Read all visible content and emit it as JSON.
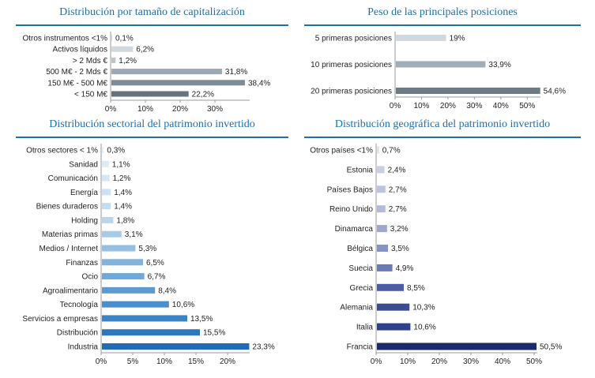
{
  "chart_data": [
    {
      "type": "bar",
      "title": "Distribución por tamaño de capitalización",
      "orientation": "horizontal",
      "categories": [
        "Otros instrumentos <1%",
        "Activos líquidos",
        "> 2 Mds €",
        "500 M€ - 2 Mds €",
        "150 M€ - 500 M€",
        "< 150 M€"
      ],
      "values": [
        0.1,
        6.2,
        1.2,
        31.8,
        38.4,
        22.2
      ],
      "value_labels": [
        "0,1%",
        "6,2%",
        "1,2%",
        "31,8%",
        "38,4%",
        "22,2%"
      ],
      "colors": [
        "#d0d8de",
        "#d0d8de",
        "#b9c5cd",
        "#9aa9b3",
        "#7d8d98",
        "#66737c"
      ],
      "xlim": [
        0,
        40
      ],
      "ticks": [
        0,
        10,
        20,
        30
      ],
      "tick_labels": [
        "0%",
        "10%",
        "20%",
        "30%"
      ]
    },
    {
      "type": "bar",
      "title": "Peso de las principales posiciones",
      "orientation": "horizontal",
      "categories": [
        "5 primeras posiciones",
        "10 primeras posiciones",
        "20 primeras posiciones"
      ],
      "values": [
        19,
        33.9,
        54.6
      ],
      "value_labels": [
        "19%",
        "33,9%",
        "54,6%"
      ],
      "colors": [
        "#cfd8de",
        "#9eadb7",
        "#6c7a84"
      ],
      "xlim": [
        0,
        55
      ],
      "ticks": [
        0,
        10,
        20,
        30,
        40,
        50
      ],
      "tick_labels": [
        "0%",
        "10%",
        "20%",
        "30%",
        "40%",
        "50%"
      ]
    },
    {
      "type": "bar",
      "title": "Distribución sectorial del patrimonio invertido",
      "orientation": "horizontal",
      "categories": [
        "Otros sectores < 1%",
        "Sanidad",
        "Comunicación",
        "Energía",
        "Bienes duraderos",
        "Holding",
        "Materias primas",
        "Medios / Internet",
        "Finanzas",
        "Ocio",
        "Agroalimentario",
        "Tecnología",
        "Servicios a empresas",
        "Distribución",
        "Industria"
      ],
      "values": [
        0.3,
        1.1,
        1.2,
        1.4,
        1.4,
        1.8,
        3.1,
        5.3,
        6.5,
        6.7,
        8.4,
        10.6,
        13.5,
        15.5,
        23.3
      ],
      "value_labels": [
        "0,3%",
        "1,1%",
        "1,2%",
        "1,4%",
        "1,4%",
        "1,8%",
        "3,1%",
        "5,3%",
        "6,5%",
        "6,7%",
        "8,4%",
        "10,6%",
        "13,5%",
        "15,5%",
        "23,3%"
      ],
      "colors": [
        "#e6f0f8",
        "#dceaf5",
        "#d4e6f3",
        "#cce1f1",
        "#c4dcef",
        "#b9d5ec",
        "#a8cbe7",
        "#94bfe2",
        "#81b3dd",
        "#70a8d8",
        "#5b9bd2",
        "#4a8fcc",
        "#3a83c5",
        "#2d77be",
        "#1f6bb5"
      ],
      "xlim": [
        0,
        23.5
      ],
      "ticks": [
        0,
        5,
        10,
        15,
        20
      ],
      "tick_labels": [
        "0%",
        "5%",
        "10%",
        "15%",
        "20%"
      ]
    },
    {
      "type": "bar",
      "title": "Distribución geográfica del patrimonio invertido",
      "orientation": "horizontal",
      "categories": [
        "Otros países <1%",
        "Estonia",
        "Países Bajos",
        "Reino Unido",
        "Dinamarca",
        "Bélgica",
        "Suecia",
        "Grecia",
        "Alemania",
        "Italia",
        "Francia"
      ],
      "values": [
        0.7,
        2.4,
        2.7,
        2.7,
        3.2,
        3.5,
        4.9,
        8.5,
        10.3,
        10.6,
        50.5
      ],
      "value_labels": [
        "0,7%",
        "2,4%",
        "2,7%",
        "2,7%",
        "3,2%",
        "3,5%",
        "4,9%",
        "8,5%",
        "10,3%",
        "10,6%",
        "50,5%"
      ],
      "colors": [
        "#dfe2ee",
        "#c9cee3",
        "#bdc3de",
        "#b3bad9",
        "#9ca6ce",
        "#8893c4",
        "#6b79b4",
        "#4d5d9f",
        "#3a4c92",
        "#2f4289",
        "#1a2a6c"
      ],
      "xlim": [
        0,
        51
      ],
      "ticks": [
        0,
        10,
        20,
        30,
        40,
        50
      ],
      "tick_labels": [
        "0%",
        "10%",
        "20%",
        "30%",
        "40%",
        "50%"
      ]
    }
  ]
}
